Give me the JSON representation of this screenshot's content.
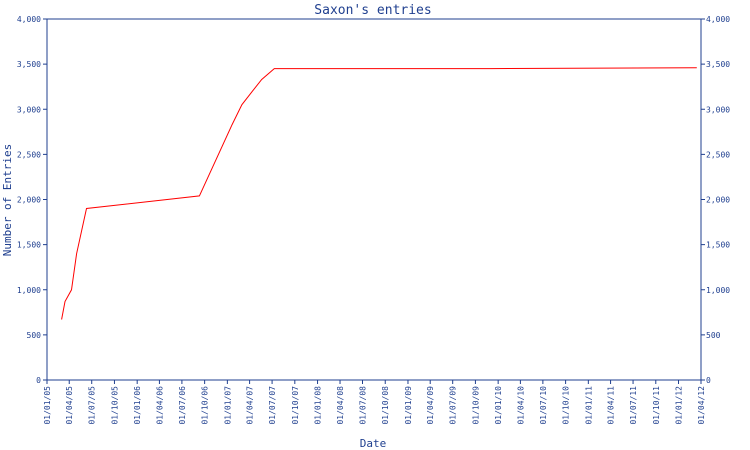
{
  "chart_data": {
    "type": "line",
    "title": "Saxon's entries",
    "xlabel": "Date",
    "ylabel": "Number of Entries",
    "ylim": [
      0,
      4000
    ],
    "yticks": [
      0,
      500,
      1000,
      1500,
      2000,
      2500,
      3000,
      3500,
      4000
    ],
    "ytick_labels": [
      "0",
      "500",
      "1,000",
      "1,500",
      "2,000",
      "2,500",
      "3,000",
      "3,500",
      "4,000"
    ],
    "xticks": [
      "01/01/05",
      "01/04/05",
      "01/07/05",
      "01/10/05",
      "01/01/06",
      "01/04/06",
      "01/07/06",
      "01/10/06",
      "01/01/07",
      "01/04/07",
      "01/07/07",
      "01/10/07",
      "01/01/08",
      "01/04/08",
      "01/07/08",
      "01/10/08",
      "01/01/09",
      "01/04/09",
      "01/07/09",
      "01/10/09",
      "01/01/10",
      "01/04/10",
      "01/07/10",
      "01/10/10",
      "01/01/11",
      "01/04/11",
      "01/07/11",
      "01/10/11",
      "01/01/12",
      "01/04/12"
    ],
    "grid": false,
    "line_color": "#ff0000",
    "axis_color": "#1f3f8f",
    "series": [
      {
        "x": [
          "2005-03-01",
          "2005-03-15",
          "2005-04-10",
          "2005-05-01",
          "2005-06-10",
          "2006-09-10",
          "2007-01-20",
          "2007-03-01",
          "2007-04-15",
          "2007-05-20",
          "2007-07-10",
          "2009-12-01",
          "2012-03-15"
        ],
        "values": [
          670,
          870,
          1000,
          1400,
          1900,
          2040,
          2830,
          3050,
          3210,
          3330,
          3450,
          3450,
          3460
        ]
      }
    ]
  }
}
